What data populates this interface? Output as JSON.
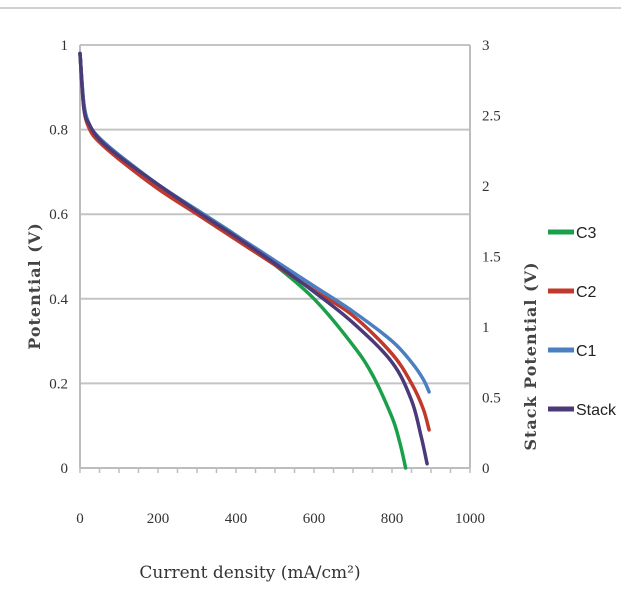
{
  "chart_data": {
    "type": "line",
    "xlabel": "Current density (mA/cm²)",
    "ylabel": "Potential (V)",
    "y2label": "Stack Potential (V)",
    "xlim": [
      0,
      1000
    ],
    "ylim": [
      0,
      1
    ],
    "y2lim": [
      0,
      3
    ],
    "x_ticks": [
      "0",
      "200",
      "400",
      "600",
      "800",
      "1000"
    ],
    "y_ticks": [
      "0",
      "0.2",
      "0.4",
      "0.6",
      "0.8",
      "1"
    ],
    "y2_ticks": [
      "0",
      "0.5",
      "1",
      "1.5",
      "2",
      "2.5",
      "3"
    ],
    "grid": "horizontal",
    "legend_position": "right",
    "series": [
      {
        "name": "C3",
        "color": "#1aa04a",
        "axis": "left",
        "x": [
          0,
          10,
          25,
          50,
          100,
          200,
          300,
          400,
          500,
          600,
          700,
          750,
          800,
          820,
          835
        ],
        "y": [
          0.98,
          0.86,
          0.81,
          0.78,
          0.74,
          0.67,
          0.61,
          0.55,
          0.48,
          0.4,
          0.29,
          0.22,
          0.12,
          0.06,
          0.0
        ]
      },
      {
        "name": "C2",
        "color": "#c0392b",
        "axis": "left",
        "x": [
          0,
          10,
          25,
          50,
          100,
          200,
          300,
          400,
          500,
          600,
          700,
          800,
          850,
          880,
          895
        ],
        "y": [
          0.98,
          0.85,
          0.8,
          0.77,
          0.73,
          0.66,
          0.6,
          0.54,
          0.48,
          0.42,
          0.36,
          0.27,
          0.2,
          0.14,
          0.09
        ]
      },
      {
        "name": "C1",
        "color": "#4a7fc1",
        "axis": "left",
        "x": [
          0,
          10,
          25,
          50,
          100,
          200,
          300,
          400,
          500,
          600,
          700,
          800,
          850,
          880,
          895
        ],
        "y": [
          0.98,
          0.86,
          0.81,
          0.78,
          0.74,
          0.67,
          0.61,
          0.55,
          0.49,
          0.43,
          0.37,
          0.3,
          0.25,
          0.21,
          0.18
        ]
      },
      {
        "name": "Stack",
        "color": "#4b3a7a",
        "axis": "right",
        "x": [
          0,
          10,
          25,
          50,
          100,
          200,
          300,
          400,
          500,
          600,
          700,
          800,
          850,
          875,
          890
        ],
        "y": [
          2.94,
          2.55,
          2.43,
          2.33,
          2.21,
          2.01,
          1.82,
          1.64,
          1.45,
          1.25,
          1.03,
          0.75,
          0.48,
          0.22,
          0.03
        ]
      }
    ]
  }
}
